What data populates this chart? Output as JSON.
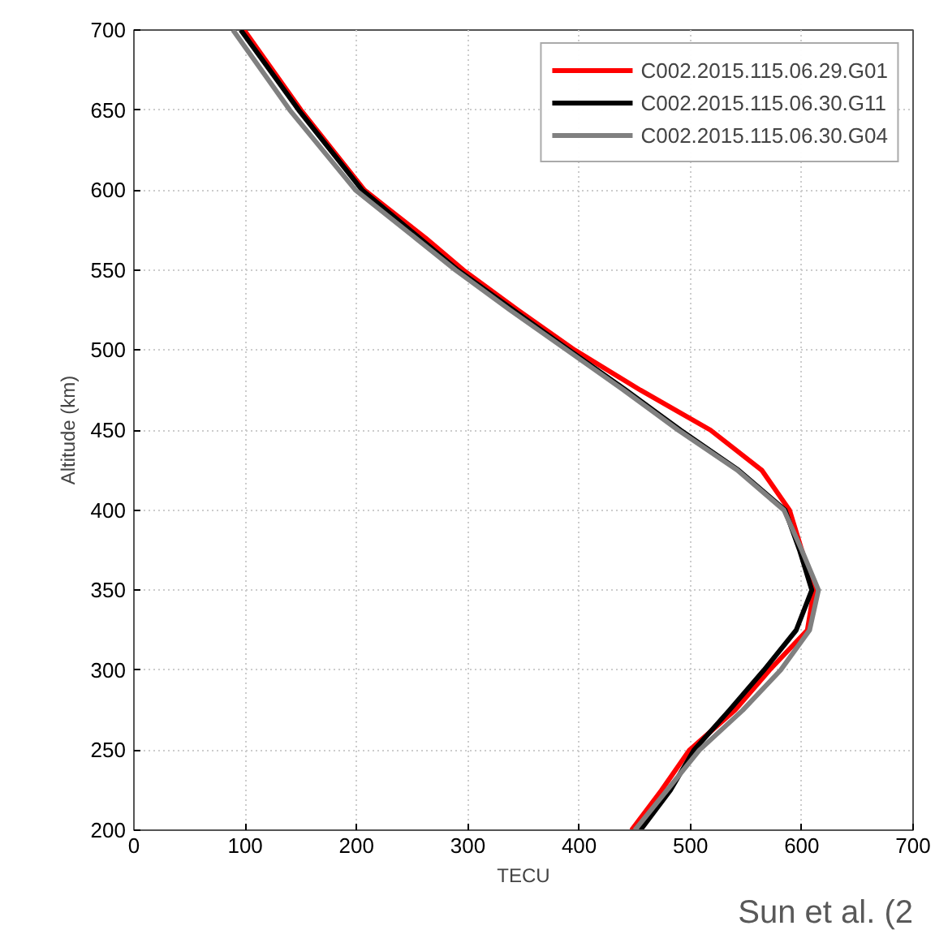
{
  "chart_data": {
    "type": "line",
    "xlabel": "TECU",
    "ylabel": "Altitude (km)",
    "xlim": [
      0,
      700
    ],
    "ylim": [
      200,
      700
    ],
    "xticks": [
      0,
      100,
      200,
      300,
      400,
      500,
      600,
      700
    ],
    "yticks": [
      200,
      250,
      300,
      350,
      400,
      450,
      500,
      550,
      600,
      650,
      700
    ],
    "grid": true,
    "legend": "top right",
    "marker": "none",
    "line_style": "solid",
    "annotations": [
      "Sun et al. (2"
    ],
    "series": [
      {
        "name": "C002.2015.115.06.29.G01",
        "color": "#ff0000",
        "x": [
          99,
          150,
          207,
          262,
          296,
          345,
          396,
          455,
          518,
          564,
          589,
          600,
          611,
          605,
          571,
          540,
          499,
          474,
          447
        ],
        "values": [
          700,
          650,
          600,
          570,
          550,
          525,
          500,
          475,
          450,
          425,
          400,
          375,
          350,
          325,
          300,
          275,
          250,
          225,
          200
        ]
      },
      {
        "name": "C002.2015.115.06.30.G11",
        "color": "#000000",
        "x": [
          96,
          148,
          205,
          291,
          341,
          391,
          442,
          491,
          543,
          585,
          598,
          609,
          595,
          566,
          535,
          503,
          482,
          455
        ],
        "values": [
          700,
          650,
          600,
          550,
          525,
          500,
          475,
          450,
          425,
          400,
          375,
          350,
          325,
          300,
          275,
          250,
          225,
          200
        ]
      },
      {
        "name": "C002.2015.115.06.30.G04",
        "color": "#808080",
        "x": [
          89,
          140,
          199,
          289,
          338,
          389,
          440,
          489,
          542,
          584,
          600,
          615,
          607,
          581,
          547,
          508,
          479,
          450
        ],
        "values": [
          700,
          650,
          600,
          550,
          525,
          500,
          475,
          450,
          425,
          400,
          375,
          350,
          325,
          300,
          275,
          250,
          225,
          200
        ]
      }
    ]
  }
}
